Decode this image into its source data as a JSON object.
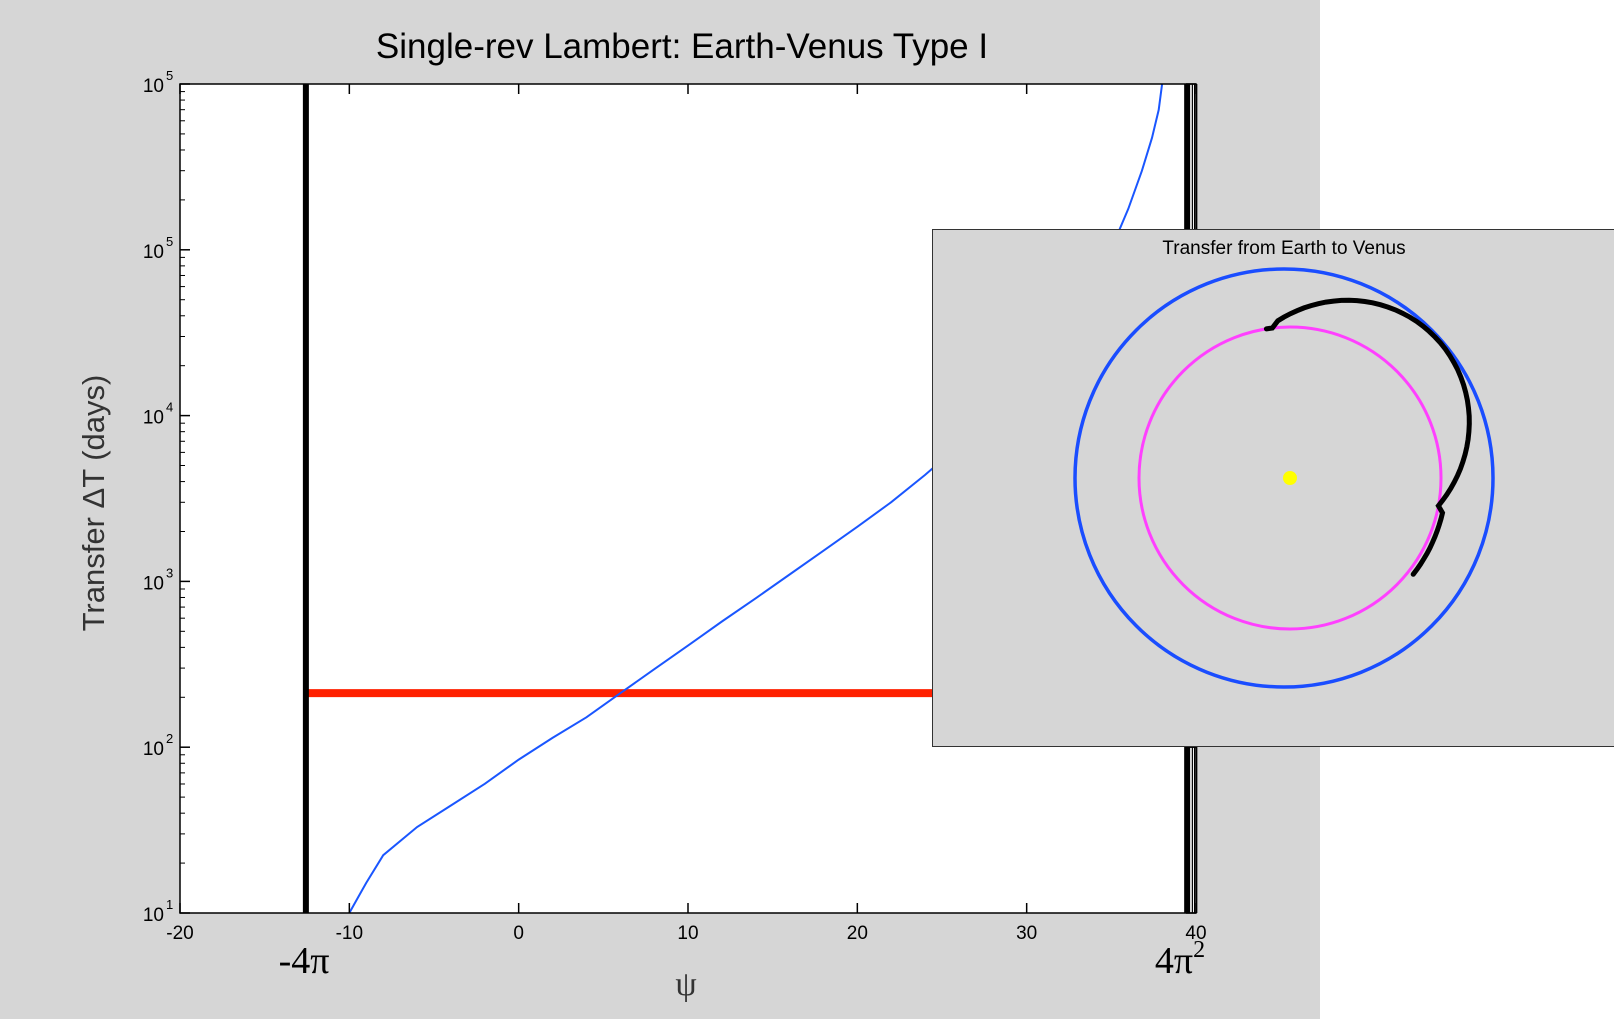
{
  "chart_data": [
    {
      "type": "line",
      "title": "Single-rev Lambert: Earth-Venus Type I",
      "xlabel": "ψ",
      "ylabel": "Transfer ΔT (days)",
      "xscale": "linear",
      "yscale": "log",
      "xlim": [
        -20,
        40
      ],
      "ylim": [
        10,
        100000
      ],
      "x_tick_labels": [
        "-20",
        "-10",
        "0",
        "10",
        "20",
        "30",
        "40"
      ],
      "y_tick_labels": [
        {
          "base": "10",
          "exp": "1"
        },
        {
          "base": "10",
          "exp": "2"
        },
        {
          "base": "10",
          "exp": "3"
        },
        {
          "base": "10",
          "exp": "4"
        },
        {
          "base": "10",
          "exp": "5"
        },
        {
          "base": "10",
          "exp": "5"
        }
      ],
      "grid": false,
      "series": [
        {
          "color": "#1a56ff",
          "x": [
            -10.0,
            -9.0,
            -8.0,
            -6.0,
            -4.0,
            -2.0,
            0.0,
            2.0,
            4.0,
            6.0,
            8.0,
            10.0,
            12.0,
            14.0,
            16.0,
            18.0,
            20.0,
            22.0,
            24.0,
            26.0,
            28.0,
            30.0,
            32.0,
            33.5,
            35.0,
            36.0,
            36.8,
            37.4,
            37.8,
            38.0
          ],
          "y": [
            10,
            14,
            19,
            26,
            33,
            42,
            55,
            70,
            88,
            115,
            150,
            195,
            255,
            330,
            430,
            560,
            730,
            960,
            1300,
            1800,
            2600,
            4000,
            6500,
            10000,
            16000,
            25000,
            38000,
            55000,
            75000,
            100000
          ]
        }
      ],
      "vertical_lines": [
        {
          "x": -12.566,
          "label": "-4π",
          "color": "#000000"
        },
        {
          "x": 39.478,
          "label": "4π",
          "label_sup": "2",
          "color": "#000000"
        }
      ],
      "horizontal_lines": [
        {
          "y": 115,
          "color": "#ff2000",
          "x_range": [
            -12.566,
            39.478
          ]
        }
      ]
    },
    {
      "type": "orbit-diagram",
      "title": "Transfer from Earth to Venus",
      "orbits": [
        {
          "body": "Earth",
          "color": "#1a4dff",
          "radius_au": 1.0
        },
        {
          "body": "Venus",
          "color": "#ff40ff",
          "radius_au": 0.72
        }
      ],
      "transfer_arc": {
        "color": "#000000",
        "start_angle_deg": 99,
        "end_angle_deg": -38
      },
      "sun": {
        "color": "#ffff00"
      }
    }
  ]
}
